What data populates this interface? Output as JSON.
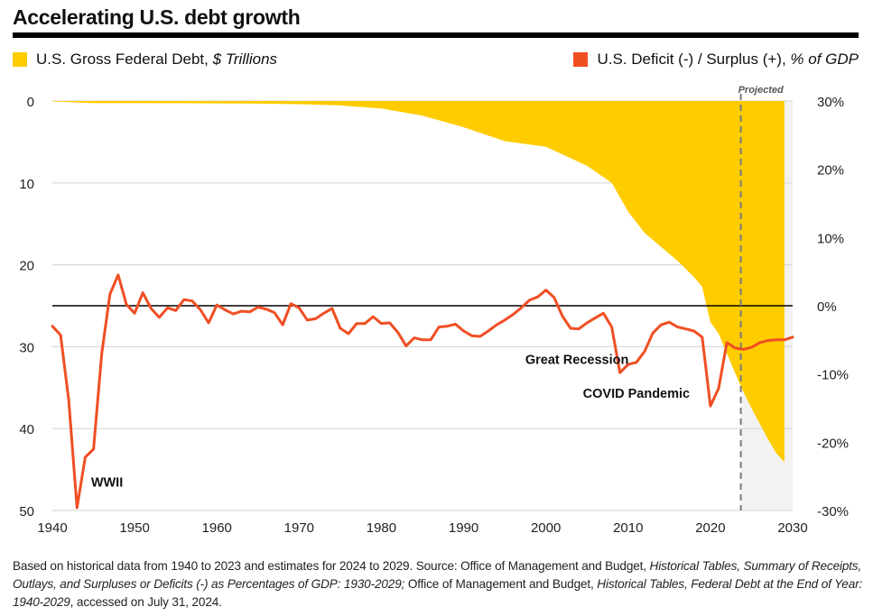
{
  "title": "Accelerating U.S. debt growth",
  "legend": {
    "left": {
      "label": "U.S. Gross Federal Debt, ",
      "label_italic": "$ Trillions",
      "color": "#FFCC00"
    },
    "right": {
      "label": "U.S. Deficit (-) / Surplus (+), ",
      "label_italic": "% of GDP",
      "color": "#F04E23"
    }
  },
  "footnote": {
    "p1": "Based on historical data from 1940 to 2023 and estimates for 2024 to 2029. Source: Office of Management and Budget, ",
    "i1": "Historical Tables, Summary of Receipts, Outlays, and Surpluses or Deficits (-) as Percentages of GDP: 1930-2029;",
    "p2": " Office of Management and Budget, ",
    "i2": "Historical Tables, Federal Debt at the End of Year: 1940-2029",
    "p3": ", accessed on July 31, 2024."
  },
  "chart_data": {
    "type": "area+line",
    "xlim": [
      1940,
      2030
    ],
    "x_ticks": [
      "1940",
      "1950",
      "1960",
      "1970",
      "1980",
      "1990",
      "2000",
      "2010",
      "2020",
      "2030"
    ],
    "left_axis": {
      "range": [
        0,
        50
      ],
      "inverted": true,
      "ticks": [
        "0",
        "10",
        "20",
        "30",
        "40",
        "50"
      ]
    },
    "right_axis": {
      "range": [
        -30,
        30
      ],
      "ticks": [
        "30%",
        "20%",
        "10%",
        "0%",
        "-10%",
        "-20%",
        "-30%"
      ]
    },
    "projection_start": 2023.7,
    "projected_label": "Projected",
    "grid": "horizontal",
    "annotations": [
      {
        "text": "WWII",
        "x": 1944.7,
        "y_pct": -26.5
      },
      {
        "text": "Great Recession",
        "x": 1997.5,
        "y_pct": -8.5
      },
      {
        "text": "COVID Pandemic",
        "x": 2004.5,
        "y_pct": -13.5
      }
    ],
    "debt_series": {
      "name": "U.S. Gross Federal Debt, $ Trillions",
      "x": [
        1940,
        1945,
        1950,
        1955,
        1960,
        1965,
        1970,
        1975,
        1980,
        1985,
        1990,
        1995,
        2000,
        2005,
        2008,
        2010,
        2012,
        2014,
        2016,
        2018,
        2019,
        2020,
        2021,
        2022,
        2023,
        2024,
        2025,
        2026,
        2027,
        2028,
        2029
      ],
      "values": [
        0.05,
        0.26,
        0.26,
        0.27,
        0.29,
        0.32,
        0.38,
        0.54,
        0.91,
        1.8,
        3.2,
        4.9,
        5.6,
        7.9,
        10.0,
        13.5,
        16.1,
        17.8,
        19.5,
        21.5,
        22.7,
        27.0,
        28.4,
        30.8,
        33.2,
        35.5,
        37.5,
        39.4,
        41.3,
        43.0,
        44.1
      ]
    },
    "deficit_series": {
      "name": "U.S. Deficit (-) / Surplus (+), % of GDP",
      "x": [
        1940,
        1941,
        1942,
        1943,
        1944,
        1945,
        1946,
        1947,
        1948,
        1949,
        1950,
        1951,
        1952,
        1953,
        1954,
        1955,
        1956,
        1957,
        1958,
        1959,
        1960,
        1961,
        1962,
        1963,
        1964,
        1965,
        1966,
        1967,
        1968,
        1969,
        1970,
        1971,
        1972,
        1973,
        1974,
        1975,
        1976,
        1977,
        1978,
        1979,
        1980,
        1981,
        1982,
        1983,
        1984,
        1985,
        1986,
        1987,
        1988,
        1989,
        1990,
        1991,
        1992,
        1993,
        1994,
        1995,
        1996,
        1997,
        1998,
        1999,
        2000,
        2001,
        2002,
        2003,
        2004,
        2005,
        2006,
        2007,
        2008,
        2009,
        2010,
        2011,
        2012,
        2013,
        2014,
        2015,
        2016,
        2017,
        2018,
        2019,
        2020,
        2021,
        2022,
        2023,
        2024,
        2025,
        2026,
        2027,
        2028,
        2029,
        2030
      ],
      "values": [
        -3.0,
        -4.3,
        -13.9,
        -29.6,
        -22.2,
        -21.0,
        -7.0,
        1.7,
        4.5,
        0.2,
        -1.1,
        1.9,
        -0.4,
        -1.7,
        -0.3,
        -0.7,
        0.9,
        0.7,
        -0.6,
        -2.5,
        0.1,
        -0.6,
        -1.2,
        -0.8,
        -0.9,
        -0.2,
        -0.5,
        -1.0,
        -2.8,
        0.3,
        -0.3,
        -2.1,
        -1.9,
        -1.1,
        -0.4,
        -3.3,
        -4.1,
        -2.6,
        -2.6,
        -1.6,
        -2.6,
        -2.5,
        -3.9,
        -5.9,
        -4.7,
        -5.0,
        -5.0,
        -3.1,
        -3.0,
        -2.7,
        -3.7,
        -4.4,
        -4.5,
        -3.7,
        -2.8,
        -2.1,
        -1.3,
        -0.3,
        0.8,
        1.3,
        2.3,
        1.2,
        -1.5,
        -3.3,
        -3.4,
        -2.5,
        -1.8,
        -1.1,
        -3.1,
        -9.8,
        -8.6,
        -8.3,
        -6.7,
        -4.0,
        -2.8,
        -2.4,
        -3.1,
        -3.4,
        -3.7,
        -4.6,
        -14.7,
        -12.1,
        -5.4,
        -6.2,
        -6.4,
        -6.1,
        -5.4,
        -5.1,
        -5.0,
        -5.0,
        -4.6
      ]
    }
  }
}
